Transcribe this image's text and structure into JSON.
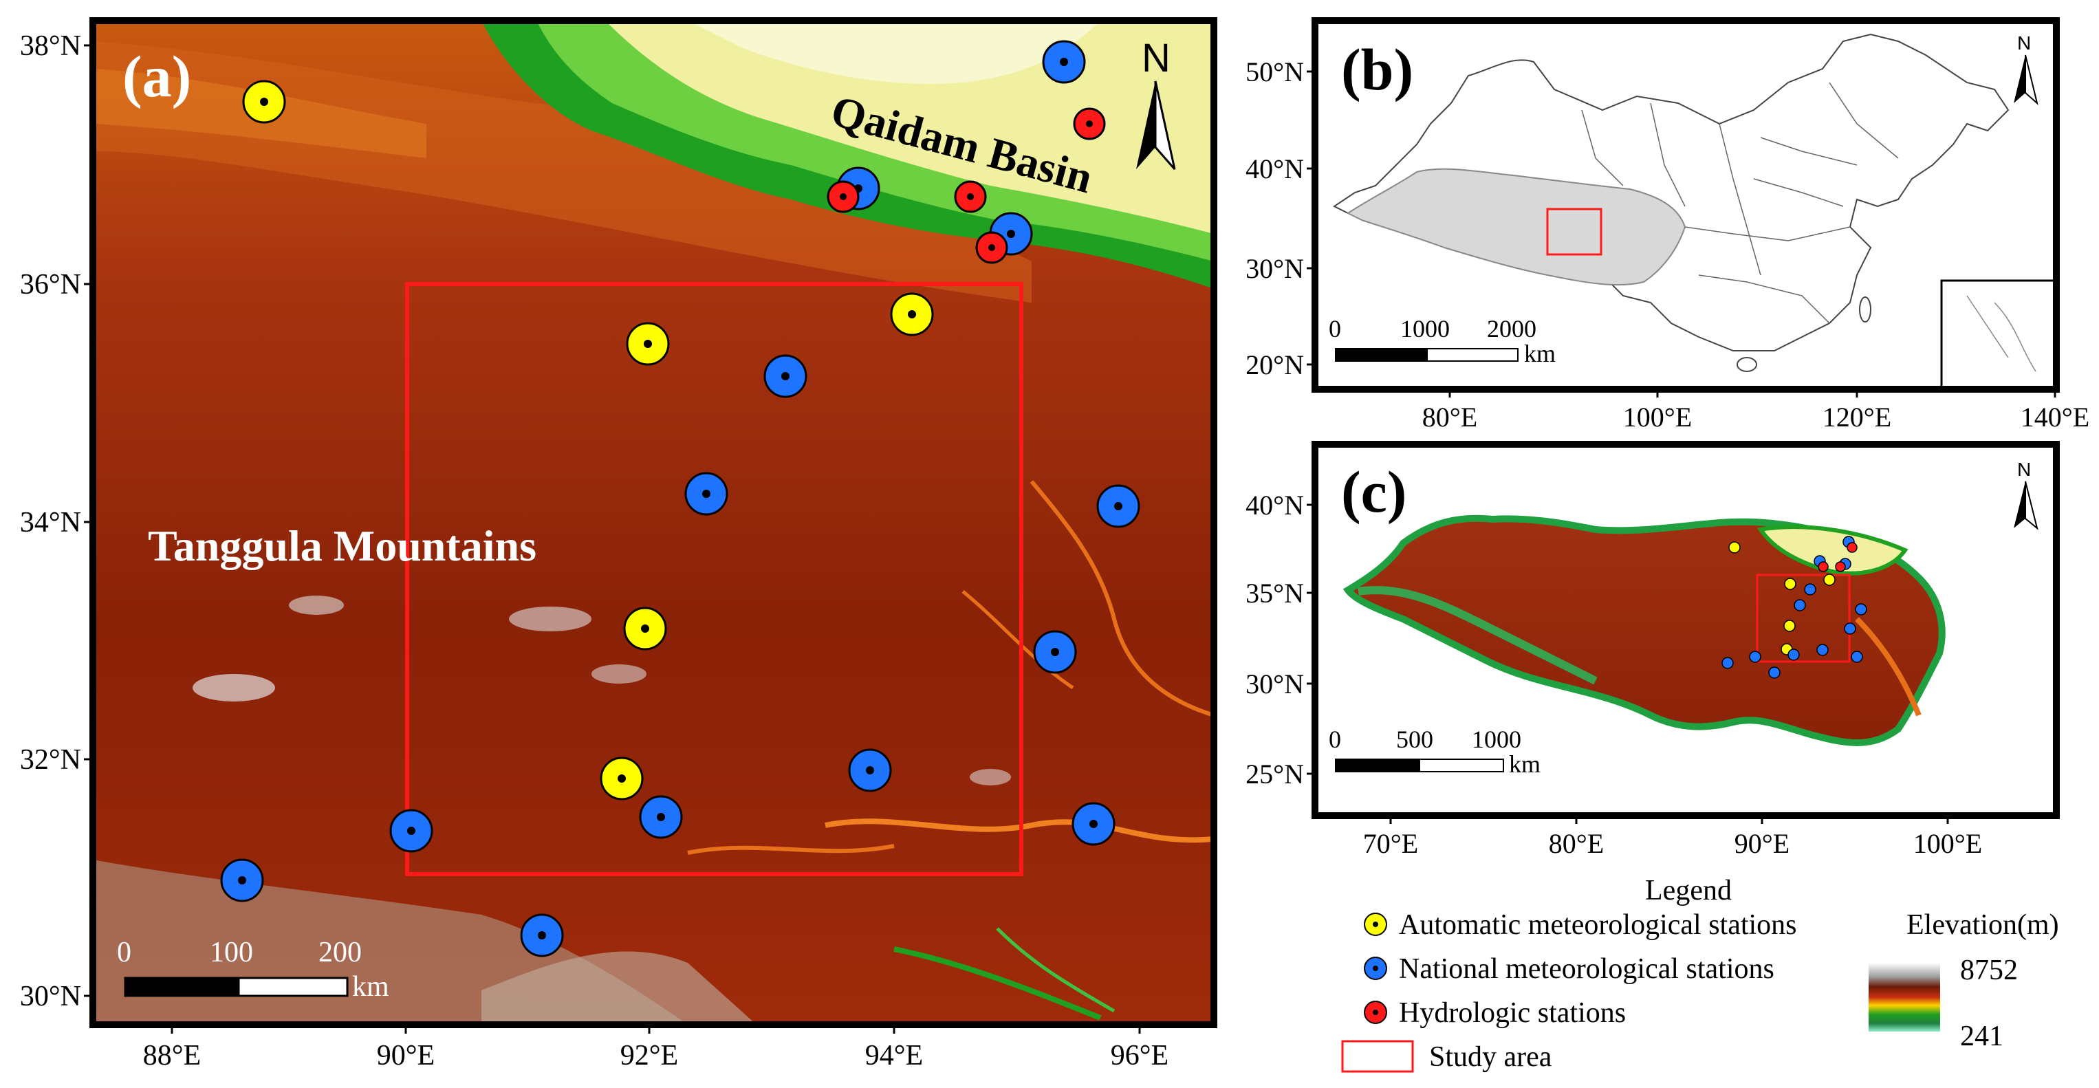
{
  "panel_a": {
    "label": "(a)",
    "north": "N",
    "place_labels": {
      "basin": "Qaidam Basin",
      "mountains": "Tanggula Mountains"
    },
    "lat_ticks": [
      "38°N",
      "36°N",
      "34°N",
      "32°N",
      "30°N"
    ],
    "lon_ticks": [
      "88°E",
      "90°E",
      "92°E",
      "94°E",
      "96°E"
    ],
    "scale": {
      "ticks": [
        "0",
        "100",
        "200"
      ],
      "unit": "km"
    },
    "colors": {
      "study_area": "#ff1a1a",
      "auto_station": "#ffff00",
      "national_station": "#1e73ff",
      "hydro_station": "#ff1a1a"
    }
  },
  "panel_b": {
    "label": "(b)",
    "north": "N",
    "lat_ticks": [
      "50°N",
      "40°N",
      "30°N",
      "20°N"
    ],
    "lon_ticks": [
      "80°E",
      "100°E",
      "120°E",
      "140°E"
    ],
    "scale": {
      "ticks": [
        "0",
        "1000",
        "2000"
      ],
      "unit": "km"
    }
  },
  "panel_c": {
    "label": "(c)",
    "north": "N",
    "lat_ticks": [
      "40°N",
      "35°N",
      "30°N",
      "25°N"
    ],
    "lon_ticks": [
      "70°E",
      "80°E",
      "90°E",
      "100°E"
    ],
    "scale": {
      "ticks": [
        "0",
        "500",
        "1000"
      ],
      "unit": "km"
    }
  },
  "legend": {
    "title": "Legend",
    "items": [
      "Automatic meteorological stations",
      "National meteorological stations",
      "Hydrologic stations",
      "Study area"
    ],
    "elevation_title": "Elevation(m)",
    "elevation_max": "8752",
    "elevation_min": "241"
  }
}
